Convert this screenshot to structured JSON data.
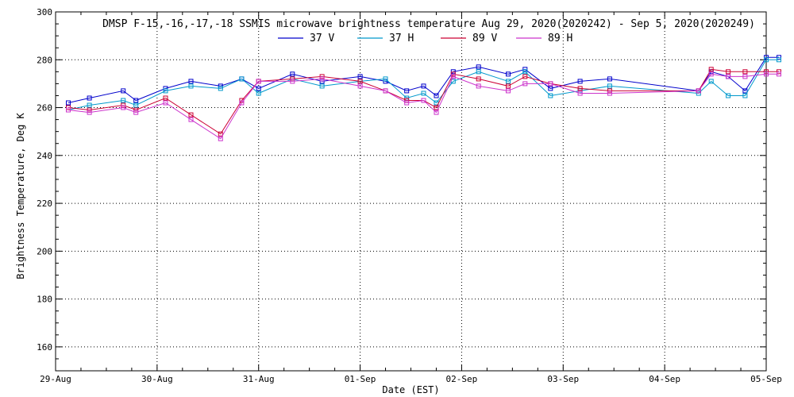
{
  "chart_data": {
    "type": "line",
    "title": "DMSP F-15,-16,-17,-18 SSMIS microwave brightness temperature Aug 29, 2020(2020242) - Sep  5, 2020(2020249)",
    "xlabel": "Date (EST)",
    "ylabel": "Brightness Temperature, Deg K",
    "xlim": [
      "2020-08-29 00:00",
      "2020-09-05 00:00"
    ],
    "ylim": [
      150,
      300
    ],
    "grid": true,
    "legend_position": "top-center",
    "x_tick_labels": [
      "29-Aug",
      "30-Aug",
      "31-Aug",
      "01-Sep",
      "02-Sep",
      "03-Sep",
      "04-Sep",
      "05-Sep"
    ],
    "y_tick_labels": [
      "160",
      "180",
      "200",
      "220",
      "240",
      "260",
      "280",
      "300"
    ],
    "x": [
      "2020-08-29 00:00",
      "2020-08-29 03:00",
      "2020-08-29 08:00",
      "2020-08-29 11:00",
      "2020-08-29 16:00",
      "2020-08-29 19:00",
      "2020-08-30 01:00",
      "2020-08-30 02:00",
      "2020-08-30 08:00",
      "2020-08-30 15:00",
      "2020-08-30 20:00",
      "2020-08-31 00:00",
      "2020-08-31 01:00",
      "2020-08-31 08:00",
      "2020-08-31 15:00",
      "2020-09-01 00:00",
      "2020-09-01 06:00",
      "2020-09-01 11:00",
      "2020-09-01 15:00",
      "2020-09-01 18:00",
      "2020-09-01 22:00",
      "2020-09-02 04:00",
      "2020-09-02 11:00",
      "2020-09-02 13:00",
      "2020-09-02 21:00",
      "2020-09-02 23:00",
      "2020-09-03 01:00",
      "2020-09-03 02:00",
      "2020-09-03 08:00",
      "2020-09-03 15:00",
      "2020-09-03 16:00",
      "2020-09-03 21:00",
      "2020-09-04 02:00",
      "2020-09-04 05:00",
      "2020-09-04 10:00",
      "2020-09-04 15:00",
      "2020-09-04 18:00",
      "2020-09-04 19:00",
      "2020-09-04 23:00",
      "2020-09-05 00:00"
    ],
    "series": [
      {
        "name": "37 V",
        "color": "#0000cc",
        "x": [
          "2020-08-29 03:00",
          "2020-08-29 08:00",
          "2020-08-29 16:00",
          "2020-08-29 19:00",
          "2020-08-30 02:00",
          "2020-08-30 08:00",
          "2020-08-30 15:00",
          "2020-08-30 20:00",
          "2020-08-31 00:00",
          "2020-08-31 08:00",
          "2020-08-31 15:00",
          "2020-09-01 00:00",
          "2020-09-01 06:00",
          "2020-09-01 11:00",
          "2020-09-01 15:00",
          "2020-09-01 18:00",
          "2020-09-01 22:00",
          "2020-09-02 04:00",
          "2020-09-02 11:00",
          "2020-09-02 15:00",
          "2020-09-02 21:00",
          "2020-09-03 04:00",
          "2020-09-03 11:00",
          "2020-09-04 08:00",
          "2020-09-04 11:00",
          "2020-09-04 15:00",
          "2020-09-04 19:00",
          "2020-09-05 00:00",
          "2020-09-05 03:00"
        ],
        "values": [
          262,
          264,
          267,
          263,
          268,
          271,
          269,
          272,
          268,
          274,
          271,
          273,
          271,
          267,
          269,
          265,
          275,
          277,
          274,
          276,
          268,
          271,
          272,
          267,
          275,
          273,
          267,
          281,
          281
        ]
      },
      {
        "name": "37 H",
        "color": "#0099cc",
        "x": [
          "2020-08-29 03:00",
          "2020-08-29 08:00",
          "2020-08-29 16:00",
          "2020-08-29 19:00",
          "2020-08-30 02:00",
          "2020-08-30 08:00",
          "2020-08-30 15:00",
          "2020-08-30 20:00",
          "2020-08-31 00:00",
          "2020-08-31 08:00",
          "2020-08-31 15:00",
          "2020-09-01 00:00",
          "2020-09-01 06:00",
          "2020-09-01 11:00",
          "2020-09-01 15:00",
          "2020-09-01 18:00",
          "2020-09-01 22:00",
          "2020-09-02 04:00",
          "2020-09-02 11:00",
          "2020-09-02 15:00",
          "2020-09-02 21:00",
          "2020-09-03 04:00",
          "2020-09-03 11:00",
          "2020-09-04 08:00",
          "2020-09-04 11:00",
          "2020-09-04 15:00",
          "2020-09-04 19:00",
          "2020-09-05 00:00",
          "2020-09-05 03:00"
        ],
        "values": [
          259,
          261,
          263,
          261,
          267,
          269,
          268,
          272,
          266,
          272,
          269,
          271,
          272,
          264,
          266,
          262,
          271,
          275,
          271,
          275,
          265,
          267,
          269,
          266,
          271,
          265,
          265,
          280,
          280
        ]
      },
      {
        "name": "89 V",
        "color": "#cc0033",
        "x": [
          "2020-08-29 03:00",
          "2020-08-29 08:00",
          "2020-08-29 16:00",
          "2020-08-29 19:00",
          "2020-08-30 02:00",
          "2020-08-30 08:00",
          "2020-08-30 15:00",
          "2020-08-30 20:00",
          "2020-08-31 00:00",
          "2020-08-31 08:00",
          "2020-08-31 15:00",
          "2020-09-01 00:00",
          "2020-09-01 06:00",
          "2020-09-01 11:00",
          "2020-09-01 15:00",
          "2020-09-01 18:00",
          "2020-09-01 22:00",
          "2020-09-02 04:00",
          "2020-09-02 11:00",
          "2020-09-02 15:00",
          "2020-09-02 21:00",
          "2020-09-03 04:00",
          "2020-09-03 11:00",
          "2020-09-04 08:00",
          "2020-09-04 11:00",
          "2020-09-04 15:00",
          "2020-09-04 19:00",
          "2020-09-05 00:00",
          "2020-09-05 03:00"
        ],
        "values": [
          260,
          259,
          261,
          259,
          264,
          257,
          249,
          263,
          271,
          272,
          273,
          271,
          267,
          263,
          263,
          260,
          274,
          272,
          269,
          273,
          270,
          268,
          267,
          267,
          276,
          275,
          275,
          275,
          275
        ]
      },
      {
        "name": "89 H",
        "color": "#cc33cc",
        "x": [
          "2020-08-29 03:00",
          "2020-08-29 08:00",
          "2020-08-29 16:00",
          "2020-08-29 19:00",
          "2020-08-30 02:00",
          "2020-08-30 08:00",
          "2020-08-30 15:00",
          "2020-08-30 20:00",
          "2020-08-31 00:00",
          "2020-08-31 08:00",
          "2020-08-31 15:00",
          "2020-09-01 00:00",
          "2020-09-01 06:00",
          "2020-09-01 11:00",
          "2020-09-01 15:00",
          "2020-09-01 18:00",
          "2020-09-01 22:00",
          "2020-09-02 04:00",
          "2020-09-02 11:00",
          "2020-09-02 15:00",
          "2020-09-02 21:00",
          "2020-09-03 04:00",
          "2020-09-03 11:00",
          "2020-09-04 08:00",
          "2020-09-04 11:00",
          "2020-09-04 15:00",
          "2020-09-04 19:00",
          "2020-09-05 00:00",
          "2020-09-05 03:00"
        ],
        "values": [
          259,
          258,
          260,
          258,
          262,
          255,
          247,
          262,
          271,
          271,
          272,
          269,
          267,
          262,
          263,
          258,
          273,
          269,
          267,
          270,
          270,
          266,
          266,
          267,
          274,
          273,
          273,
          274,
          274
        ]
      }
    ]
  }
}
